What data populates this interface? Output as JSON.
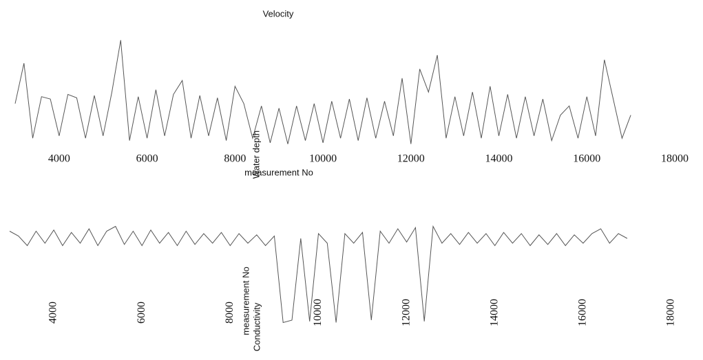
{
  "chart_data": [
    {
      "type": "line",
      "title": "Velocity",
      "xlabel": "measurement No",
      "ylabel": "Water depth",
      "xlim": [
        3000,
        18000
      ],
      "ylim": [
        0,
        100
      ],
      "xticks": [
        4000,
        6000,
        8000,
        10000,
        12000,
        14000,
        16000,
        18000
      ],
      "color": "#555555",
      "x": [
        3000,
        3200,
        3400,
        3600,
        3800,
        4000,
        4200,
        4400,
        4600,
        4800,
        5000,
        5200,
        5400,
        5600,
        5800,
        6000,
        6200,
        6400,
        6600,
        6800,
        7000,
        7200,
        7400,
        7600,
        7800,
        8000,
        8200,
        8400,
        8600,
        8800,
        9000,
        9200,
        9400,
        9600,
        9800,
        10000,
        10200,
        10400,
        10600,
        10800,
        11000,
        11200,
        11400,
        11600,
        11800,
        12000,
        12200,
        12400,
        12600,
        12800,
        13000,
        13200,
        13400,
        13600,
        13800,
        14000,
        14200,
        14400,
        14600,
        14800,
        15000,
        15200,
        15400,
        15600,
        15800,
        16000,
        16200,
        16400,
        16600,
        16800,
        17000
      ],
      "values": [
        40,
        75,
        10,
        46,
        44,
        12,
        48,
        45,
        10,
        47,
        12,
        50,
        95,
        8,
        46,
        10,
        52,
        12,
        48,
        60,
        10,
        47,
        12,
        45,
        8,
        55,
        40,
        10,
        38,
        6,
        36,
        5,
        38,
        8,
        40,
        6,
        42,
        10,
        44,
        8,
        45,
        10,
        42,
        12,
        62,
        5,
        70,
        50,
        82,
        10,
        46,
        12,
        50,
        10,
        55,
        12,
        48,
        10,
        46,
        12,
        44,
        8,
        30,
        38,
        10,
        46,
        12,
        78,
        44,
        10,
        30
      ]
    },
    {
      "type": "line",
      "title": "Conductivity",
      "xlabel": "measurement No",
      "xlim": [
        3000,
        18000
      ],
      "ylim": [
        0,
        100
      ],
      "xticks": [
        4000,
        6000,
        8000,
        10000,
        12000,
        14000,
        16000,
        18000
      ],
      "color": "#555555",
      "x": [
        3000,
        3200,
        3400,
        3600,
        3800,
        4000,
        4200,
        4400,
        4600,
        4800,
        5000,
        5200,
        5400,
        5600,
        5800,
        6000,
        6200,
        6400,
        6600,
        6800,
        7000,
        7200,
        7400,
        7600,
        7800,
        8000,
        8200,
        8400,
        8600,
        8800,
        9000,
        9200,
        9400,
        9600,
        9800,
        10000,
        10200,
        10400,
        10600,
        10800,
        11000,
        11200,
        11400,
        11600,
        11800,
        12000,
        12200,
        12400,
        12600,
        12800,
        13000,
        13200,
        13400,
        13600,
        13800,
        14000,
        14200,
        14400,
        14600,
        14800,
        15000,
        15200,
        15400,
        15600,
        15800,
        16000,
        16200,
        16400,
        16600,
        16800,
        17000
      ],
      "values": [
        82,
        78,
        70,
        82,
        72,
        83,
        70,
        81,
        72,
        84,
        70,
        82,
        86,
        71,
        82,
        70,
        83,
        72,
        81,
        70,
        82,
        71,
        80,
        72,
        81,
        70,
        80,
        72,
        79,
        70,
        78,
        6,
        8,
        76,
        7,
        80,
        72,
        6,
        80,
        72,
        81,
        8,
        82,
        72,
        84,
        73,
        85,
        7,
        86,
        72,
        80,
        71,
        81,
        72,
        80,
        70,
        81,
        72,
        80,
        70,
        79,
        71,
        80,
        70,
        79,
        72,
        80,
        84,
        72,
        80,
        76
      ]
    }
  ]
}
